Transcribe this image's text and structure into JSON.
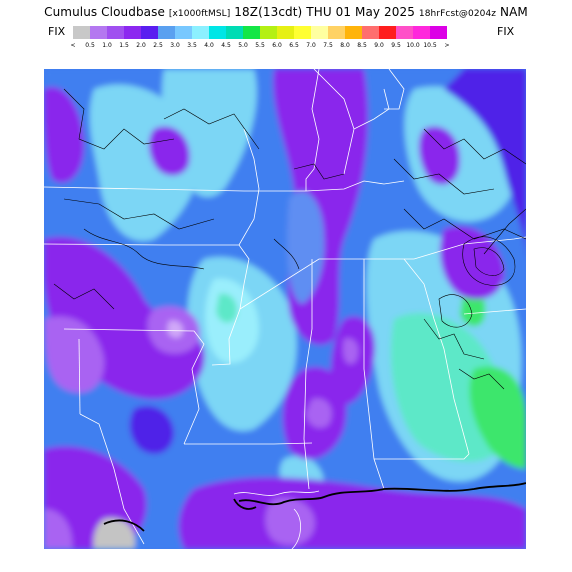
{
  "header": {
    "product": "Cumulus Cloudbase",
    "units": "[x1000ftMSL]",
    "run": "18Z(13cdt)",
    "date": "THU 01 May 2025",
    "valid": "18hrFcst@0204z",
    "model": "NAM"
  },
  "legend": {
    "left_label": "FIX",
    "right_label": "FIX",
    "ticks": [
      "<",
      "0.5",
      "1.0",
      "1.5",
      "2.0",
      "2.5",
      "3.0",
      "3.5",
      "4.0",
      "4.5",
      "5.0",
      "5.5",
      "6.0",
      "6.5",
      "7.0",
      "7.5",
      "8.0",
      "8.5",
      "9.0",
      "9.5",
      "10.0",
      "10.5",
      ">"
    ],
    "colors": [
      "#c8c8c8",
      "#b478f0",
      "#a050f0",
      "#8c28f0",
      "#5a1ef0",
      "#5aa0f0",
      "#78c8ff",
      "#8cf0ff",
      "#00e6e6",
      "#00dcb4",
      "#14e646",
      "#b4f014",
      "#e6f014",
      "#ffff32",
      "#ffffa0",
      "#ffd264",
      "#ffb40a",
      "#ff6e6e",
      "#ff1e1e",
      "#ff50c8",
      "#ff28dc",
      "#dc00e6"
    ]
  },
  "map": {
    "fill_colors": {
      "base": "#3f7ff0",
      "cyan": "#7bd6f5",
      "light_cyan": "#9aeefc",
      "purple": "#8a26ec",
      "violet": "#a963f2",
      "deep": "#4f20e8",
      "mint": "#5de8c8",
      "green": "#3ce66c",
      "gray": "#c4c4c4"
    }
  }
}
